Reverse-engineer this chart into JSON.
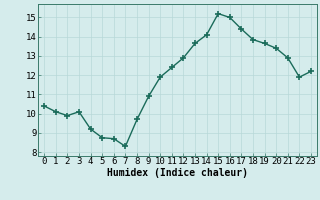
{
  "x": [
    0,
    1,
    2,
    3,
    4,
    5,
    6,
    7,
    8,
    9,
    10,
    11,
    12,
    13,
    14,
    15,
    16,
    17,
    18,
    19,
    20,
    21,
    22,
    23
  ],
  "y": [
    10.4,
    10.1,
    9.9,
    10.1,
    9.2,
    8.75,
    8.7,
    8.3,
    9.7,
    10.9,
    11.9,
    12.4,
    12.9,
    13.65,
    14.1,
    15.2,
    15.0,
    14.4,
    13.85,
    13.65,
    13.4,
    12.9,
    11.9,
    12.2
  ],
  "line_color": "#1a6b5a",
  "marker": "+",
  "markersize": 4,
  "markeredgewidth": 1.2,
  "linewidth": 1.0,
  "background_color": "#d5ecec",
  "grid_color": "#b8d8d8",
  "xlabel": "Humidex (Indice chaleur)",
  "xlabel_fontsize": 7,
  "tick_fontsize": 6.5,
  "xlim": [
    -0.5,
    23.5
  ],
  "ylim": [
    7.8,
    15.7
  ],
  "yticks": [
    8,
    9,
    10,
    11,
    12,
    13,
    14,
    15
  ],
  "xticks": [
    0,
    1,
    2,
    3,
    4,
    5,
    6,
    7,
    8,
    9,
    10,
    11,
    12,
    13,
    14,
    15,
    16,
    17,
    18,
    19,
    20,
    21,
    22,
    23
  ]
}
